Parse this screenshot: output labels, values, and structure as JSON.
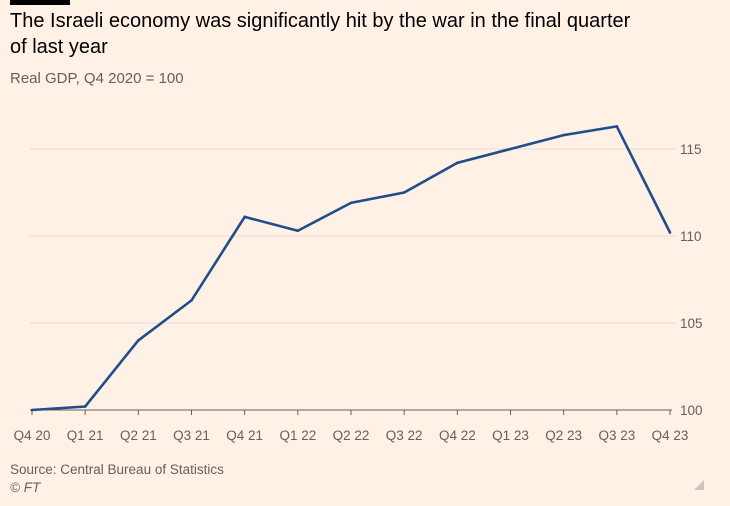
{
  "title": "The Israeli economy was significantly hit by the war in the final quarter of last year",
  "subtitle": "Real GDP, Q4 2020 = 100",
  "source": "Source: Central Bureau of Statistics",
  "credit": "© FT",
  "colors": {
    "background": "#FFF1E5",
    "line": "#1F4E8A",
    "grid": "#E8DCD1",
    "axis": "#66605C",
    "text": "#33302E"
  },
  "chart_data": {
    "type": "line",
    "title": "The Israeli economy was significantly hit by the war in the final quarter of last year",
    "subtitle": "Real GDP, Q4 2020 = 100",
    "xlabel": "",
    "ylabel": "Real GDP, Q4 2020 = 100",
    "categories": [
      "Q4 20",
      "Q1 21",
      "Q2 21",
      "Q3 21",
      "Q4 21",
      "Q1 22",
      "Q2 22",
      "Q3 22",
      "Q4 22",
      "Q1 23",
      "Q2 23",
      "Q3 23",
      "Q4 23"
    ],
    "series": [
      {
        "name": "Real GDP",
        "values": [
          100.0,
          100.2,
          104.0,
          106.3,
          111.1,
          110.3,
          111.9,
          112.5,
          114.2,
          115.0,
          115.8,
          116.3,
          110.2
        ]
      }
    ],
    "ylim": [
      100,
      117
    ],
    "yticks": [
      100,
      105,
      110,
      115
    ],
    "ytick_labels": [
      "100",
      "105",
      "110",
      "115"
    ],
    "grid": true,
    "y_axis_side": "right"
  }
}
